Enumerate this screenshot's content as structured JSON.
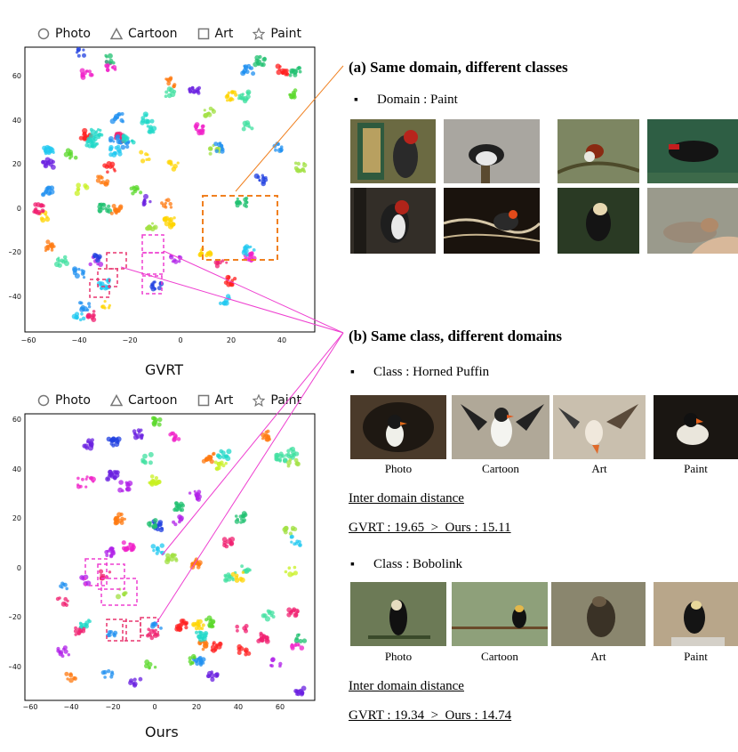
{
  "legend": {
    "photo": "Photo",
    "cartoon": "Cartoon",
    "art": "Art",
    "paint": "Paint"
  },
  "top_plot": {
    "title": "GVRT",
    "x_ticks": [
      "−60",
      "−40",
      "−20",
      "0",
      "20",
      "40"
    ],
    "y_ticks": [
      "60",
      "40",
      "20",
      "0",
      "−20",
      "−40"
    ]
  },
  "bottom_plot": {
    "title": "Ours",
    "x_ticks": [
      "−60",
      "−40",
      "−20",
      "0",
      "20",
      "40",
      "60"
    ],
    "y_ticks": [
      "60",
      "40",
      "20",
      "0",
      "−20",
      "−40"
    ]
  },
  "section_a": {
    "title": "(a) Same domain, different classes",
    "domain_label": "Domain : Paint"
  },
  "section_b": {
    "title": "(b) Same class, different domains",
    "class1": {
      "label": "Class : Horned Puffin",
      "captions": [
        "Photo",
        "Cartoon",
        "Art",
        "Paint"
      ],
      "distance_title": "Inter domain distance",
      "distance_value": "GVRT : 19.65  >  Ours : 15.11"
    },
    "class2": {
      "label": "Class : Bobolink",
      "captions": [
        "Photo",
        "Cartoon",
        "Art",
        "Paint"
      ],
      "distance_title": "Inter domain distance",
      "distance_value": "GVRT : 19.34  >  Ours : 14.74"
    }
  },
  "colors": {
    "dashed_orange": "#f08020",
    "dashed_magenta": "#ee3fd0",
    "dashed_pink": "#e8356f"
  }
}
